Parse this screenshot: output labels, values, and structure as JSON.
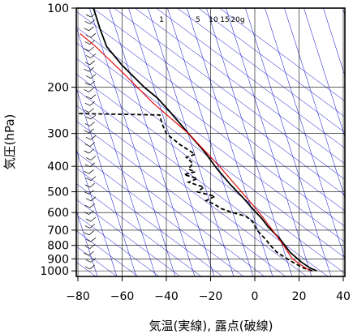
{
  "chart_data": {
    "type": "line",
    "title": "",
    "xlabel": "気温(実線), 露点(破線)",
    "ylabel": "気圧(hPa)",
    "xlim": [
      -80,
      40
    ],
    "ylim": [
      1050,
      100
    ],
    "yscale": "log",
    "x_ticks": [
      "−80",
      "−60",
      "−40",
      "−20",
      "0",
      "20",
      "40"
    ],
    "x_tick_values": [
      -80,
      -60,
      -40,
      -20,
      0,
      20,
      40
    ],
    "y_ticks": [
      "100",
      "200",
      "300",
      "400",
      "500",
      "600",
      "700",
      "800",
      "900",
      "1000"
    ],
    "y_tick_values": [
      100,
      200,
      300,
      400,
      500,
      600,
      700,
      800,
      900,
      1000
    ],
    "mixing_ratio_labels": [
      "1",
      "5",
      "10",
      "15",
      "20g"
    ],
    "mixing_ratio_values": [
      1,
      5,
      10,
      15,
      20
    ],
    "grid": true,
    "colors": {
      "temperature": "#000000",
      "dewpoint": "#000000",
      "reference": "#e00000",
      "isotherm_lines": "#0000cc",
      "grid": "#000000"
    },
    "series": [
      {
        "style": "solid",
        "color": "#000000",
        "points": [
          [
            28,
            1000
          ],
          [
            25,
            975
          ],
          [
            21,
            925
          ],
          [
            16,
            850
          ],
          [
            11,
            750
          ],
          [
            6,
            680
          ],
          [
            3,
            630
          ],
          [
            -1,
            580
          ],
          [
            -5,
            530
          ],
          [
            -11,
            470
          ],
          [
            -17,
            410
          ],
          [
            -23,
            350
          ],
          [
            -30,
            300
          ],
          [
            -38,
            250
          ],
          [
            -44,
            220
          ],
          [
            -50,
            200
          ],
          [
            -60,
            165
          ],
          [
            -67,
            140
          ],
          [
            -70,
            120
          ],
          [
            -72,
            106
          ],
          [
            -73,
            100
          ]
        ]
      },
      {
        "style": "dashed",
        "color": "#000000",
        "points": [
          [
            26,
            1000
          ],
          [
            22,
            975
          ],
          [
            17,
            925
          ],
          [
            10,
            850
          ],
          [
            7,
            800
          ],
          [
            5,
            760
          ],
          [
            1,
            700
          ],
          [
            -1,
            650
          ],
          [
            -4,
            620
          ],
          [
            -10,
            600
          ],
          [
            -15,
            580
          ],
          [
            -18,
            560
          ],
          [
            -22,
            540
          ],
          [
            -18,
            520
          ],
          [
            -26,
            500
          ],
          [
            -23,
            480
          ],
          [
            -30,
            460
          ],
          [
            -26,
            445
          ],
          [
            -32,
            430
          ],
          [
            -27,
            420
          ],
          [
            -30,
            410
          ],
          [
            -28,
            390
          ],
          [
            -31,
            370
          ],
          [
            -27,
            360
          ],
          [
            -34,
            330
          ],
          [
            -40,
            300
          ],
          [
            -42,
            275
          ],
          [
            -43,
            255
          ],
          [
            -80,
            252
          ]
        ]
      },
      {
        "style": "solid",
        "color": "#e00000",
        "points": [
          [
            25,
            1000
          ],
          [
            21,
            950
          ],
          [
            17,
            900
          ],
          [
            13,
            800
          ],
          [
            8,
            700
          ],
          [
            2,
            600
          ],
          [
            -6,
            500
          ],
          [
            -16,
            400
          ],
          [
            -30,
            300
          ],
          [
            -46,
            230
          ],
          [
            -60,
            175
          ],
          [
            -72,
            140
          ],
          [
            -79,
            125
          ]
        ]
      }
    ]
  }
}
